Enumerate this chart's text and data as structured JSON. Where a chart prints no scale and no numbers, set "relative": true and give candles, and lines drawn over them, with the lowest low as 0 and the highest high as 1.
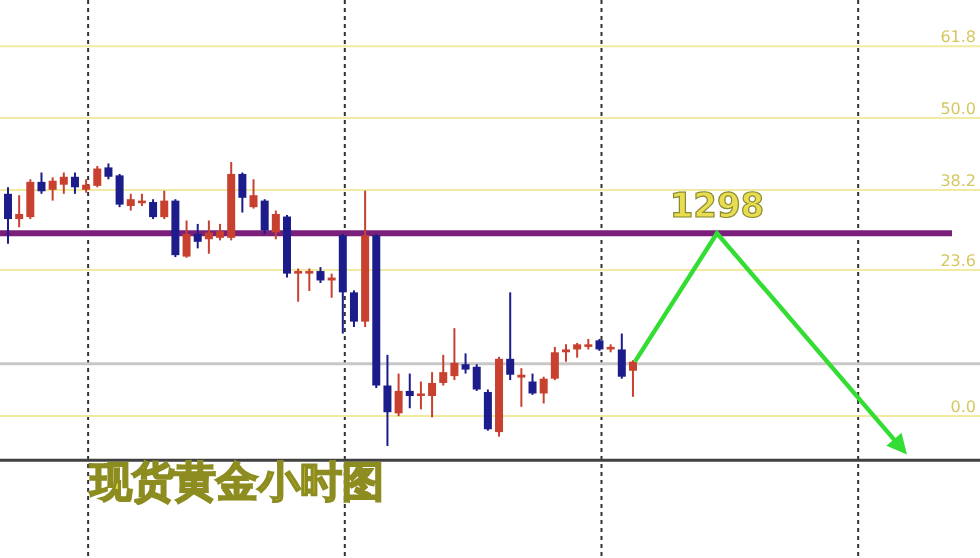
{
  "chart_data": {
    "type": "candlestick",
    "title": "现货黄金小时图",
    "relative": true,
    "categories": [
      null,
      null,
      null,
      null,
      null,
      null,
      null,
      null,
      null,
      null,
      null,
      null,
      null,
      null,
      null,
      null,
      null,
      null,
      null,
      null,
      null,
      null,
      null,
      null,
      null,
      null,
      null,
      null,
      null,
      null,
      null,
      null,
      null,
      null,
      null,
      null,
      null,
      null,
      null,
      null,
      null,
      null,
      null,
      null,
      null,
      null,
      null,
      null,
      null,
      null,
      null,
      null,
      null,
      null,
      null,
      null,
      null
    ],
    "ohlc": [
      [
        0.888,
        0.911,
        0.712,
        0.799
      ],
      [
        0.799,
        0.883,
        0.77,
        0.817
      ],
      [
        0.806,
        0.939,
        0.799,
        0.93
      ],
      [
        0.93,
        0.963,
        0.888,
        0.897
      ],
      [
        0.902,
        0.946,
        0.864,
        0.934
      ],
      [
        0.92,
        0.963,
        0.888,
        0.948
      ],
      [
        0.948,
        0.963,
        0.888,
        0.911
      ],
      [
        0.902,
        0.939,
        0.892,
        0.92
      ],
      [
        0.916,
        0.986,
        0.911,
        0.977
      ],
      [
        0.981,
        0.995,
        0.939,
        0.948
      ],
      [
        0.953,
        0.958,
        0.841,
        0.85
      ],
      [
        0.845,
        0.888,
        0.829,
        0.869
      ],
      [
        0.855,
        0.888,
        0.845,
        0.864
      ],
      [
        0.859,
        0.869,
        0.799,
        0.806
      ],
      [
        0.806,
        0.899,
        0.799,
        0.864
      ],
      [
        0.864,
        0.869,
        0.665,
        0.672
      ],
      [
        0.667,
        0.794,
        0.663,
        0.747
      ],
      [
        0.747,
        0.782,
        0.696,
        0.719
      ],
      [
        0.728,
        0.794,
        0.677,
        0.752
      ],
      [
        0.733,
        0.782,
        0.724,
        0.756
      ],
      [
        0.733,
        1.0,
        0.724,
        0.958
      ],
      [
        0.958,
        0.963,
        0.822,
        0.874
      ],
      [
        0.841,
        0.939,
        0.836,
        0.883
      ],
      [
        0.864,
        0.869,
        0.747,
        0.759
      ],
      [
        0.752,
        0.829,
        0.728,
        0.817
      ],
      [
        0.808,
        0.813,
        0.593,
        0.607
      ],
      [
        0.607,
        0.625,
        0.508,
        0.616
      ],
      [
        0.607,
        0.625,
        0.546,
        0.616
      ],
      [
        0.616,
        0.63,
        0.574,
        0.583
      ],
      [
        0.583,
        0.607,
        0.522,
        0.593
      ],
      [
        0.742,
        0.747,
        0.396,
        0.541
      ],
      [
        0.541,
        0.548,
        0.419,
        0.438
      ],
      [
        0.438,
        0.899,
        0.419,
        0.742
      ],
      [
        0.742,
        0.747,
        0.204,
        0.213
      ],
      [
        0.213,
        0.321,
        0.0,
        0.119
      ],
      [
        0.115,
        0.255,
        0.105,
        0.194
      ],
      [
        0.194,
        0.255,
        0.133,
        0.176
      ],
      [
        0.176,
        0.227,
        0.129,
        0.185
      ],
      [
        0.176,
        0.26,
        0.101,
        0.222
      ],
      [
        0.222,
        0.321,
        0.213,
        0.26
      ],
      [
        0.246,
        0.415,
        0.232,
        0.293
      ],
      [
        0.288,
        0.326,
        0.255,
        0.269
      ],
      [
        0.279,
        0.288,
        0.194,
        0.199
      ],
      [
        0.19,
        0.199,
        0.054,
        0.059
      ],
      [
        0.049,
        0.314,
        0.033,
        0.307
      ],
      [
        0.307,
        0.541,
        0.232,
        0.251
      ],
      [
        0.241,
        0.274,
        0.138,
        0.251
      ],
      [
        0.227,
        0.255,
        0.18,
        0.185
      ],
      [
        0.185,
        0.244,
        0.15,
        0.237
      ],
      [
        0.237,
        0.349,
        0.232,
        0.33
      ],
      [
        0.33,
        0.358,
        0.297,
        0.34
      ],
      [
        0.34,
        0.363,
        0.311,
        0.358
      ],
      [
        0.349,
        0.377,
        0.34,
        0.358
      ],
      [
        0.372,
        0.377,
        0.335,
        0.34
      ],
      [
        0.34,
        0.358,
        0.33,
        0.349
      ],
      [
        0.34,
        0.396,
        0.237,
        0.244
      ],
      [
        0.265,
        0.302,
        0.173,
        0.297
      ]
    ],
    "colors": [
      "#1c1c8a",
      "#c8402e",
      "#c8402e",
      "#1c1c8a",
      "#c8402e",
      "#c8402e",
      "#1c1c8a",
      "#c8402e",
      "#c8402e",
      "#1c1c8a",
      "#1c1c8a",
      "#c8402e",
      "#c8402e",
      "#1c1c8a",
      "#c8402e",
      "#1c1c8a",
      "#c8402e",
      "#1c1c8a",
      "#c8402e",
      "#c8402e",
      "#c8402e",
      "#1c1c8a",
      "#c8402e",
      "#1c1c8a",
      "#c8402e",
      "#1c1c8a",
      "#c8402e",
      "#c8402e",
      "#1c1c8a",
      "#c8402e",
      "#1c1c8a",
      "#1c1c8a",
      "#c8402e",
      "#1c1c8a",
      "#1c1c8a",
      "#c8402e",
      "#1c1c8a",
      "#c8402e",
      "#c8402e",
      "#c8402e",
      "#c8402e",
      "#1c1c8a",
      "#1c1c8a",
      "#1c1c8a",
      "#c8402e",
      "#1c1c8a",
      "#c8402e",
      "#1c1c8a",
      "#c8402e",
      "#c8402e",
      "#c8402e",
      "#c8402e",
      "#c8402e",
      "#1c1c8a",
      "#c8402e",
      "#1c1c8a",
      "#c8402e"
    ],
    "ref_lines": [
      {
        "axis": "y",
        "value": 1.408,
        "color": "#f2eaa0"
      },
      {
        "axis": "y",
        "value": 1.155,
        "color": "#f2eaa0"
      },
      {
        "axis": "y",
        "value": 0.901,
        "color": "#f2eaa0"
      },
      {
        "axis": "y",
        "value": 0.749,
        "color": "#7a1f7a"
      },
      {
        "axis": "y",
        "value": 0.62,
        "color": "#f2eaa0"
      },
      {
        "axis": "y",
        "value": 0.29,
        "color": "#c8c8c8"
      },
      {
        "axis": "y",
        "value": 0.106,
        "color": "#f2eaa0"
      },
      {
        "axis": "y",
        "value": -0.05,
        "color": "#404040"
      }
    ],
    "annotations": [
      "61.8",
      "50.0",
      "38.2",
      "1298",
      "23.6",
      "0.0"
    ],
    "grid": "x"
  }
}
